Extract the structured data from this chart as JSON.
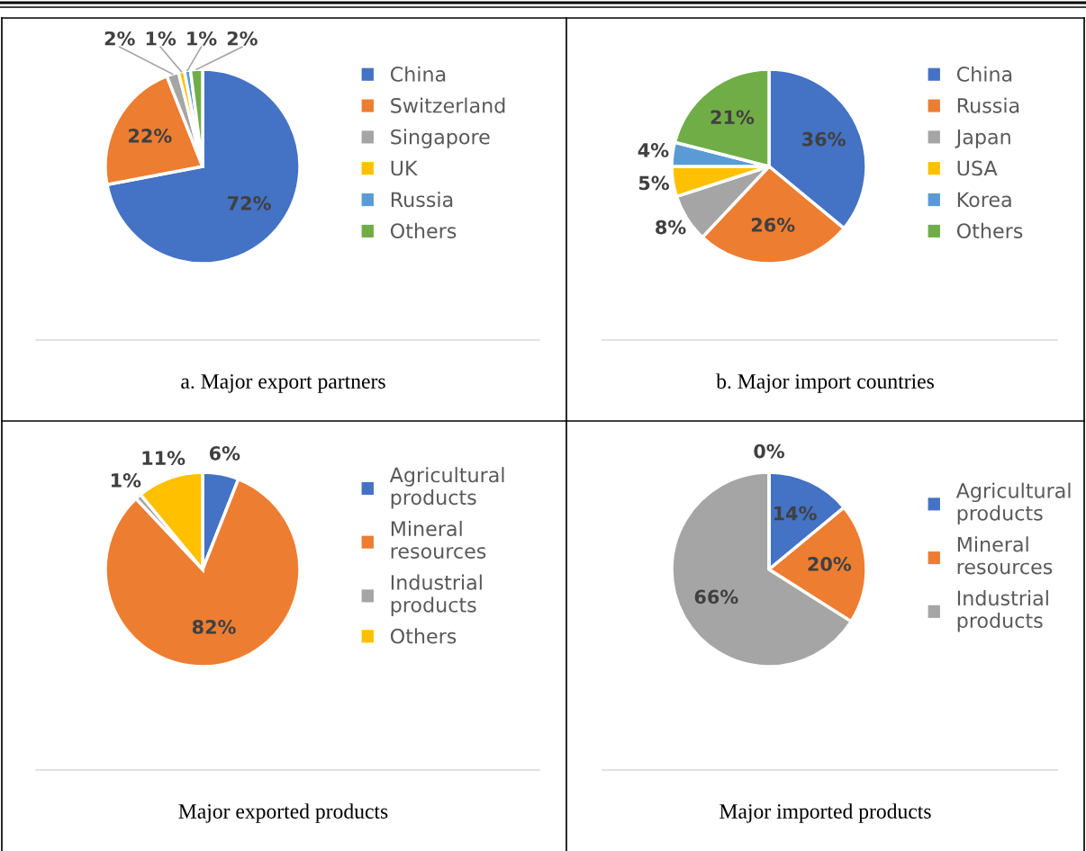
{
  "chart_data": [
    {
      "type": "pie",
      "title": "a. Major export partners",
      "categories": [
        "China",
        "Switzerland",
        "Singapore",
        "UK",
        "Russia",
        "Others"
      ],
      "values": [
        72,
        22,
        2,
        1,
        1,
        2
      ],
      "value_labels": [
        "72%",
        "22%",
        "2%",
        "1%",
        "1%",
        "2%"
      ],
      "colors": [
        "#4472c4",
        "#ed7d31",
        "#a5a5a5",
        "#ffc000",
        "#5b9bd5",
        "#70ad47"
      ],
      "legend": "right"
    },
    {
      "type": "pie",
      "title": "b. Major import countries",
      "categories": [
        "China",
        "Russia",
        "Japan",
        "USA",
        "Korea",
        "Others"
      ],
      "values": [
        36,
        26,
        8,
        5,
        4,
        21
      ],
      "value_labels": [
        "36%",
        "26%",
        "8%",
        "5%",
        "4%",
        "21%"
      ],
      "colors": [
        "#4472c4",
        "#ed7d31",
        "#a5a5a5",
        "#ffc000",
        "#5b9bd5",
        "#70ad47"
      ],
      "legend": "right"
    },
    {
      "type": "pie",
      "title": "Major exported products",
      "categories": [
        "Agricultural\nproducts",
        "Mineral\nresources",
        "Industrial\nproducts",
        "Others"
      ],
      "values": [
        6,
        82,
        1,
        11
      ],
      "value_labels": [
        "6%",
        "82%",
        "1%",
        "11%"
      ],
      "colors": [
        "#4472c4",
        "#ed7d31",
        "#a5a5a5",
        "#ffc000"
      ],
      "legend": "right"
    },
    {
      "type": "pie",
      "title": "Major imported products",
      "categories": [
        "Agricultural\nproducts",
        "Mineral\nresources",
        "Industrial\nproducts",
        null
      ],
      "values": [
        14,
        20,
        66,
        0
      ],
      "value_labels": [
        "14%",
        "20%",
        "66%",
        "0%"
      ],
      "colors": [
        "#4472c4",
        "#ed7d31",
        "#a5a5a5",
        "#ffc000"
      ],
      "legend": "right"
    }
  ]
}
